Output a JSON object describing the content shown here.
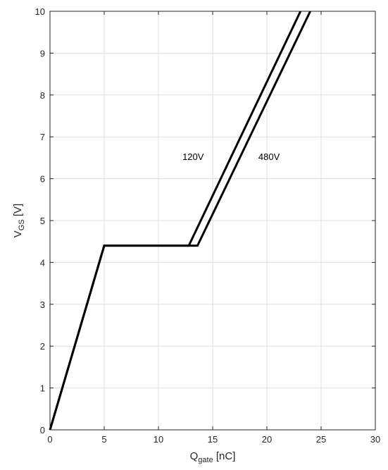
{
  "chart_data": {
    "type": "line",
    "title": "",
    "xlabel": {
      "main": "Q",
      "sub": "gate",
      "unit": " [nC]"
    },
    "ylabel": {
      "main": "V",
      "sub": "GS",
      "unit": " [V]"
    },
    "xlim": [
      0,
      30
    ],
    "ylim": [
      0,
      10
    ],
    "xticks": [
      0,
      5,
      10,
      15,
      20,
      25,
      30
    ],
    "yticks": [
      0,
      1,
      2,
      3,
      4,
      5,
      6,
      7,
      8,
      9,
      10
    ],
    "xtick_labels": [
      "0",
      "5",
      "10",
      "15",
      "20",
      "25",
      "30"
    ],
    "ytick_labels": [
      "0",
      "1",
      "2",
      "3",
      "4",
      "5",
      "6",
      "7",
      "8",
      "9",
      "10"
    ],
    "grid": true,
    "legend": "none",
    "series": [
      {
        "name": "120V",
        "x": [
          0,
          5,
          12.8,
          23.1
        ],
        "y": [
          0,
          4.4,
          4.4,
          10
        ],
        "color": "#000000"
      },
      {
        "name": "480V",
        "x": [
          0,
          5,
          13.6,
          24.0
        ],
        "y": [
          0,
          4.4,
          4.4,
          10
        ],
        "color": "#000000"
      }
    ],
    "annotations": [
      {
        "text": "120V",
        "x": 13.2,
        "y": 6.45
      },
      {
        "text": "480V",
        "x": 20.2,
        "y": 6.45
      }
    ]
  },
  "colors": {
    "grid": "#dfdfdf",
    "axes": "#262626",
    "lines": "#000000",
    "background": "#ffffff"
  }
}
